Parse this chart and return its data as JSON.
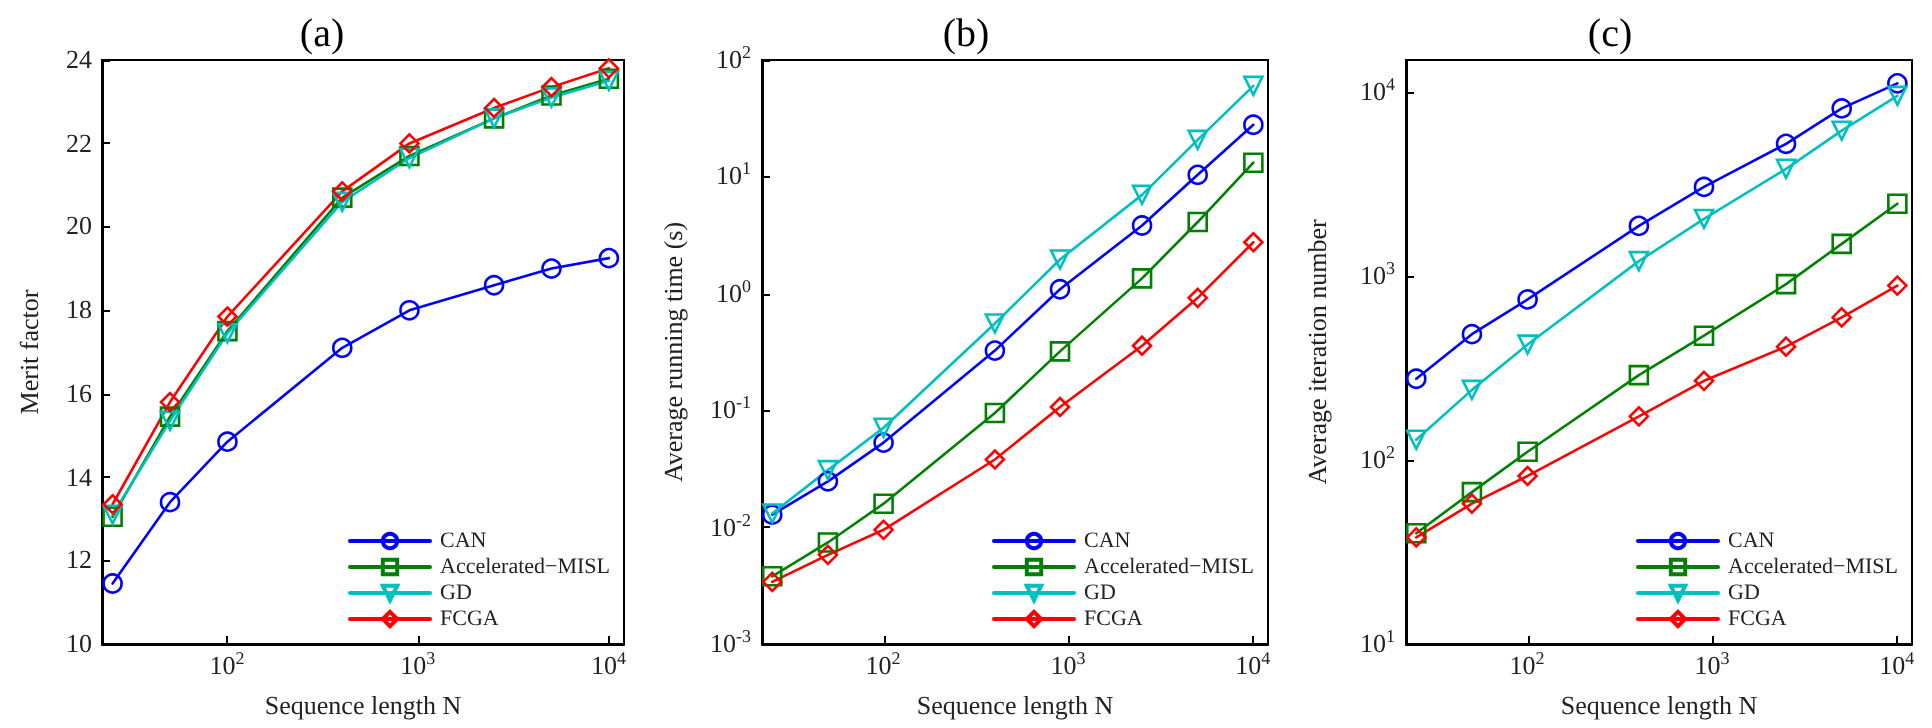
{
  "chart_data": [
    {
      "type": "line",
      "title": "(a)",
      "xlabel": "Sequence length N",
      "ylabel": "Merit factor",
      "log": "x",
      "grid": false,
      "legend": "bottom right",
      "x": [
        25,
        50,
        100,
        400,
        900,
        2500,
        5000,
        10000
      ],
      "xlim": [
        22,
        12000
      ],
      "xticks": [
        {
          "value": 100,
          "label": "10$^{2}$"
        },
        {
          "value": 1000,
          "label": "10$^{3}$"
        },
        {
          "value": 10000,
          "label": "10$^{4}$"
        }
      ],
      "ylim": [
        10,
        24
      ],
      "yticks": [
        10,
        12,
        14,
        16,
        18,
        20,
        22,
        24
      ],
      "series": [
        {
          "name": "CAN",
          "color": "#0000ff",
          "marker": "circle",
          "values": [
            11.45,
            13.4,
            14.85,
            17.1,
            18.0,
            18.6,
            19.0,
            19.25
          ]
        },
        {
          "name": "Accelerated−MISL",
          "color": "#008000",
          "marker": "square",
          "values": [
            13.05,
            15.45,
            17.5,
            20.7,
            21.7,
            22.6,
            23.15,
            23.55
          ]
        },
        {
          "name": "GD",
          "color": "#00bfbf",
          "marker": "triangle",
          "values": [
            13.1,
            15.35,
            17.45,
            20.6,
            21.65,
            22.6,
            23.1,
            23.5
          ]
        },
        {
          "name": "FCGA",
          "color": "#ff0000",
          "marker": "diamond",
          "values": [
            13.35,
            15.8,
            17.85,
            20.85,
            22.0,
            22.85,
            23.35,
            23.8
          ]
        }
      ]
    },
    {
      "type": "line",
      "title": "(b)",
      "xlabel": "Sequence length N",
      "ylabel": "Average running time (s)",
      "log": "xy",
      "grid": false,
      "legend": "bottom right",
      "x": [
        25,
        50,
        100,
        400,
        900,
        2500,
        5000,
        10000
      ],
      "xlim": [
        22,
        12000
      ],
      "xticks": [
        {
          "value": 100,
          "label": "10$^{2}$"
        },
        {
          "value": 1000,
          "label": "10$^{3}$"
        },
        {
          "value": 10000,
          "label": "10$^{4}$"
        }
      ],
      "ylim": [
        0.001,
        100
      ],
      "yticks": [
        {
          "value": 0.001,
          "label": "10$^{-3}$"
        },
        {
          "value": 0.01,
          "label": "10$^{-2}$"
        },
        {
          "value": 0.1,
          "label": "10$^{-1}$"
        },
        {
          "value": 1,
          "label": "10$^{0}$"
        },
        {
          "value": 10,
          "label": "10$^{1}$"
        },
        {
          "value": 100,
          "label": "10$^{2}$"
        }
      ],
      "series": [
        {
          "name": "CAN",
          "color": "#0000ff",
          "marker": "circle",
          "values": [
            0.0128,
            0.0247,
            0.053,
            0.325,
            1.09,
            3.83,
            10.4,
            27.9
          ]
        },
        {
          "name": "Accelerated−MISL",
          "color": "#008000",
          "marker": "square",
          "values": [
            0.0038,
            0.0074,
            0.0159,
            0.095,
            0.32,
            1.35,
            4.1,
            13.2
          ]
        },
        {
          "name": "GD",
          "color": "#00bfbf",
          "marker": "triangle",
          "values": [
            0.0131,
            0.0308,
            0.071,
            0.555,
            1.96,
            7.0,
            20.7,
            60
          ]
        },
        {
          "name": "FCGA",
          "color": "#ff0000",
          "marker": "diamond",
          "values": [
            0.0034,
            0.0058,
            0.0095,
            0.038,
            0.107,
            0.358,
            0.92,
            2.75
          ]
        }
      ]
    },
    {
      "type": "line",
      "title": "(c)",
      "xlabel": "Sequence length N",
      "ylabel": "Average iteration number",
      "log": "xy",
      "grid": false,
      "legend": "bottom right",
      "x": [
        25,
        50,
        100,
        400,
        900,
        2500,
        5000,
        10000
      ],
      "xlim": [
        22,
        12000
      ],
      "xticks": [
        {
          "value": 100,
          "label": "10$^{2}$"
        },
        {
          "value": 1000,
          "label": "10$^{3}$"
        },
        {
          "value": 10000,
          "label": "10$^{4}$"
        }
      ],
      "ylim": [
        10,
        15000
      ],
      "yticks": [
        {
          "value": 10,
          "label": "10$^{1}$"
        },
        {
          "value": 100,
          "label": "10$^{2}$"
        },
        {
          "value": 1000,
          "label": "10$^{3}$"
        },
        {
          "value": 10000,
          "label": "10$^{4}$"
        }
      ],
      "series": [
        {
          "name": "CAN",
          "color": "#0000ff",
          "marker": "circle",
          "values": [
            277,
            484,
            748,
            1879,
            3060,
            5250,
            8180,
            11190
          ]
        },
        {
          "name": "Accelerated−MISL",
          "color": "#008000",
          "marker": "square",
          "values": [
            40,
            67,
            111,
            290,
            475,
            906,
            1500,
            2480
          ]
        },
        {
          "name": "GD",
          "color": "#00bfbf",
          "marker": "triangle",
          "values": [
            129,
            241,
            425,
            1208,
            2050,
            3840,
            6190,
            9570
          ]
        },
        {
          "name": "FCGA",
          "color": "#ff0000",
          "marker": "diamond",
          "values": [
            38,
            58,
            82,
            173,
            270,
            414,
            597,
            890
          ]
        }
      ]
    }
  ]
}
